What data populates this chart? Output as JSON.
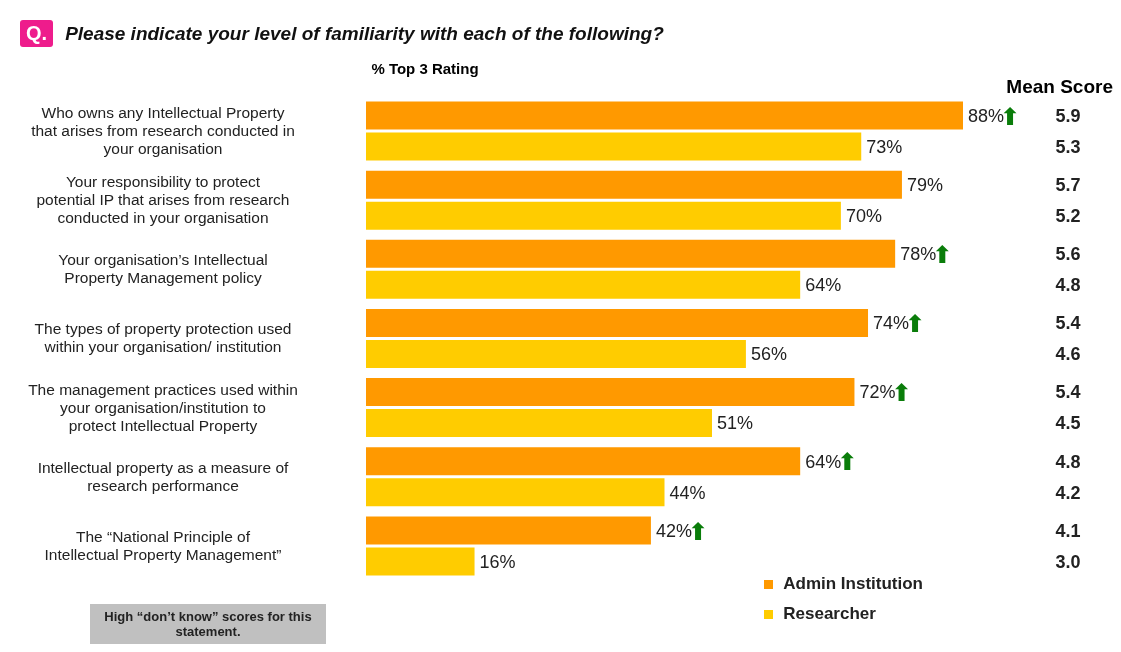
{
  "chart_data": {
    "type": "bar",
    "orientation": "horizontal",
    "title": "Please indicate your level of familiarity with each of the following?",
    "categories": [
      "Who owns any Intellectual Property that arises from research conducted in your organisation",
      "Your responsibility to protect potential IP that arises from research conducted in your organisation",
      "Your organisation’s Intellectual Property Management policy",
      "The types of property protection used within your organisation/ institution",
      "The management practices used within your organisation/institution to protect Intellectual Property",
      "Intellectual property as a measure of research performance",
      "The “National Principle of Intellectual Property Management”"
    ],
    "series": [
      {
        "name": "Admin Institution",
        "color": "#ff9900",
        "values": [
          88,
          79,
          78,
          74,
          72,
          64,
          42
        ],
        "value_labels": [
          "88%",
          "79%",
          "78%",
          "74%",
          "72%",
          "64%",
          "42%"
        ]
      },
      {
        "name": "Researcher",
        "color": "#ffcc00",
        "values": [
          73,
          70,
          64,
          56,
          51,
          44,
          16
        ],
        "value_labels": [
          "73%",
          "70%",
          "64%",
          "56%",
          "51%",
          "44%",
          "16%"
        ]
      }
    ],
    "legend": "bottom right",
    "annotations": [
      "Q.",
      "% Top 3 Rating",
      "Mean Score",
      "High “don’t know” scores for this statement.",
      "5.9",
      "5.3",
      "5.7",
      "5.2",
      "5.6",
      "4.8",
      "5.4",
      "4.6",
      "5.4",
      "4.5",
      "4.8",
      "4.2",
      "4.1",
      "3.0",
      {
        "text": "⬆",
        "x": 88,
        "y": "Who owns any Intellectual Property that arises from research conducted in your organisation"
      },
      {
        "text": "⬆",
        "x": 78,
        "y": "Your organisation’s Intellectual Property Management policy"
      },
      {
        "text": "⬆",
        "x": 74,
        "y": "The types of property protection used within your organisation/ institution"
      },
      {
        "text": "⬆",
        "x": 72,
        "y": "The management practices used within your organisation/institution to protect Intellectual Property"
      },
      {
        "text": "⬆",
        "x": 64,
        "y": "Intellectual property as a measure of research performance"
      },
      {
        "text": "⬆",
        "x": 42,
        "y": "The “National Principle of Intellectual Property Management”"
      }
    ]
  }
}
